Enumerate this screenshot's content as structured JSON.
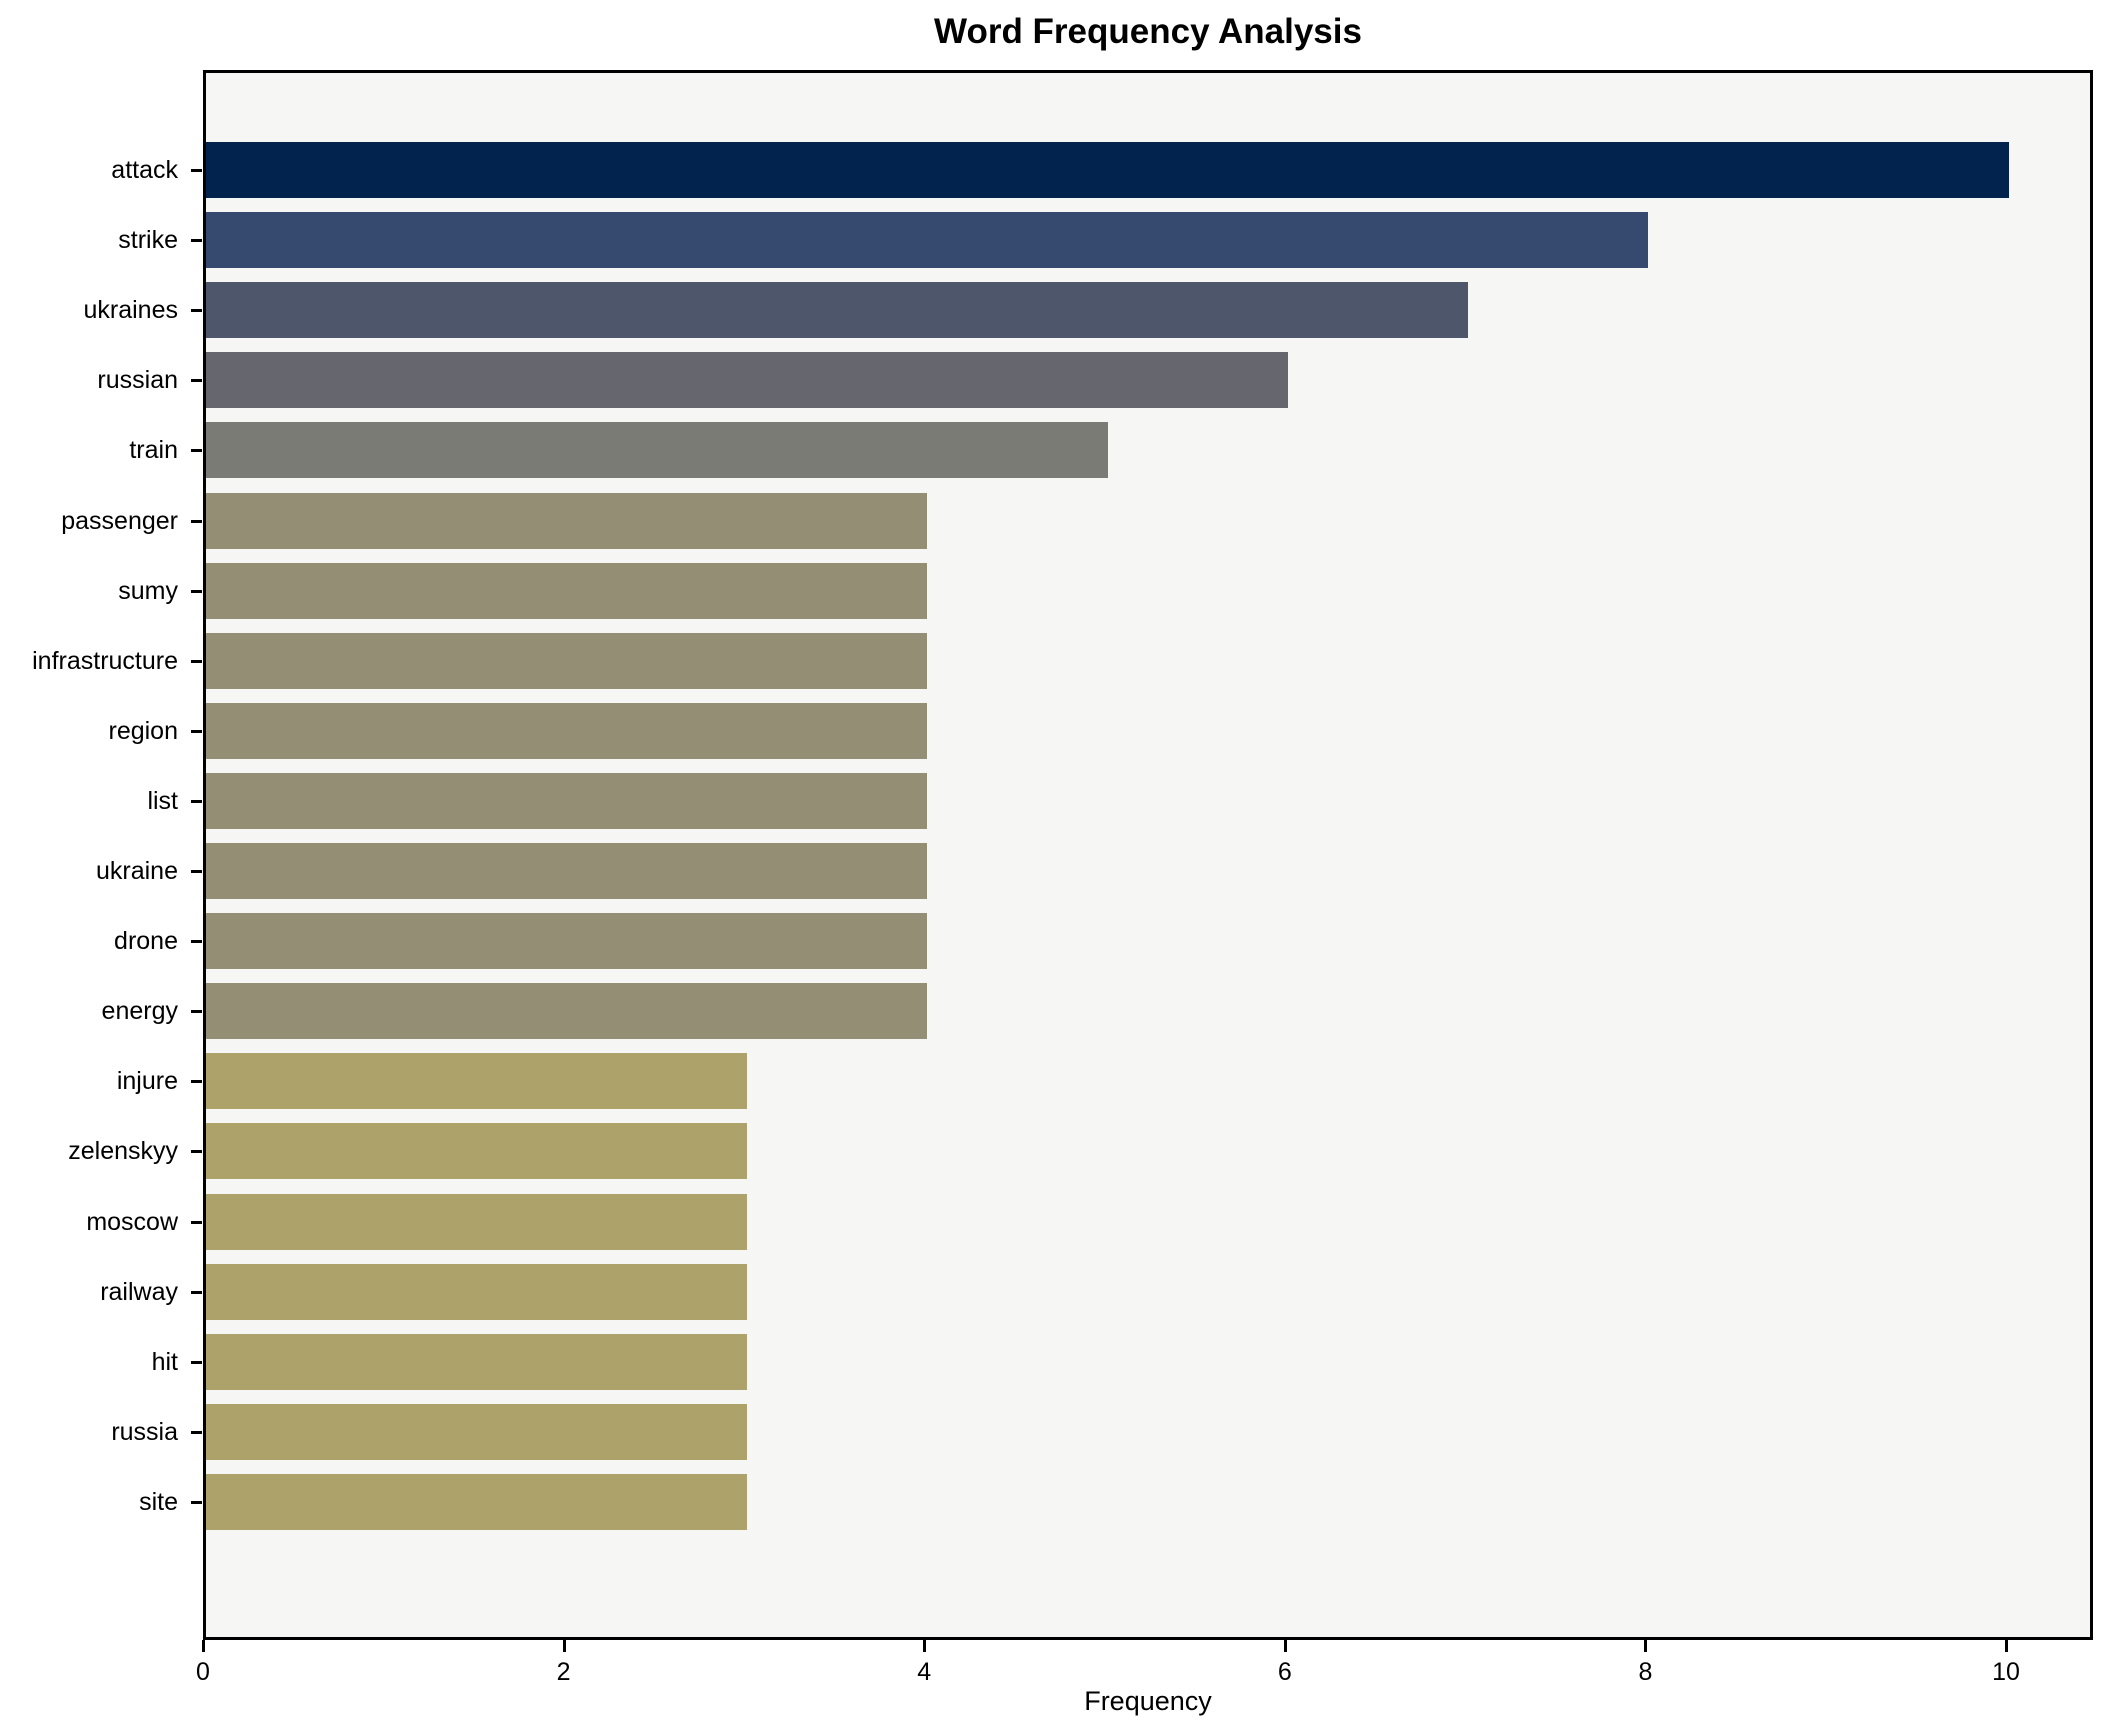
{
  "chart_data": {
    "type": "bar",
    "orientation": "horizontal",
    "title": "Word Frequency Analysis",
    "xlabel": "Frequency",
    "ylabel": "",
    "categories": [
      "attack",
      "strike",
      "ukraines",
      "russian",
      "train",
      "passenger",
      "sumy",
      "infrastructure",
      "region",
      "list",
      "ukraine",
      "drone",
      "energy",
      "injure",
      "zelenskyy",
      "moscow",
      "railway",
      "hit",
      "russia",
      "site"
    ],
    "values": [
      10,
      8,
      7,
      6,
      5,
      4,
      4,
      4,
      4,
      4,
      4,
      4,
      4,
      3,
      3,
      3,
      3,
      3,
      3,
      3
    ],
    "bar_colors": [
      "#01234e",
      "#36496f",
      "#4e566b",
      "#66666e",
      "#7b7b76",
      "#948e75",
      "#948e75",
      "#948e75",
      "#948e75",
      "#948e75",
      "#948e75",
      "#948e75",
      "#948e75",
      "#ada269",
      "#ada269",
      "#ada269",
      "#ada269",
      "#ada269",
      "#ada269",
      "#ada269"
    ],
    "xticks": [
      0,
      2,
      4,
      6,
      8,
      10
    ],
    "xlim": [
      0,
      10.48
    ],
    "grid": false,
    "legend": null,
    "plot_background": "#f6f6f4",
    "figure_background": "#ffffff",
    "spine_color": "#000000"
  }
}
